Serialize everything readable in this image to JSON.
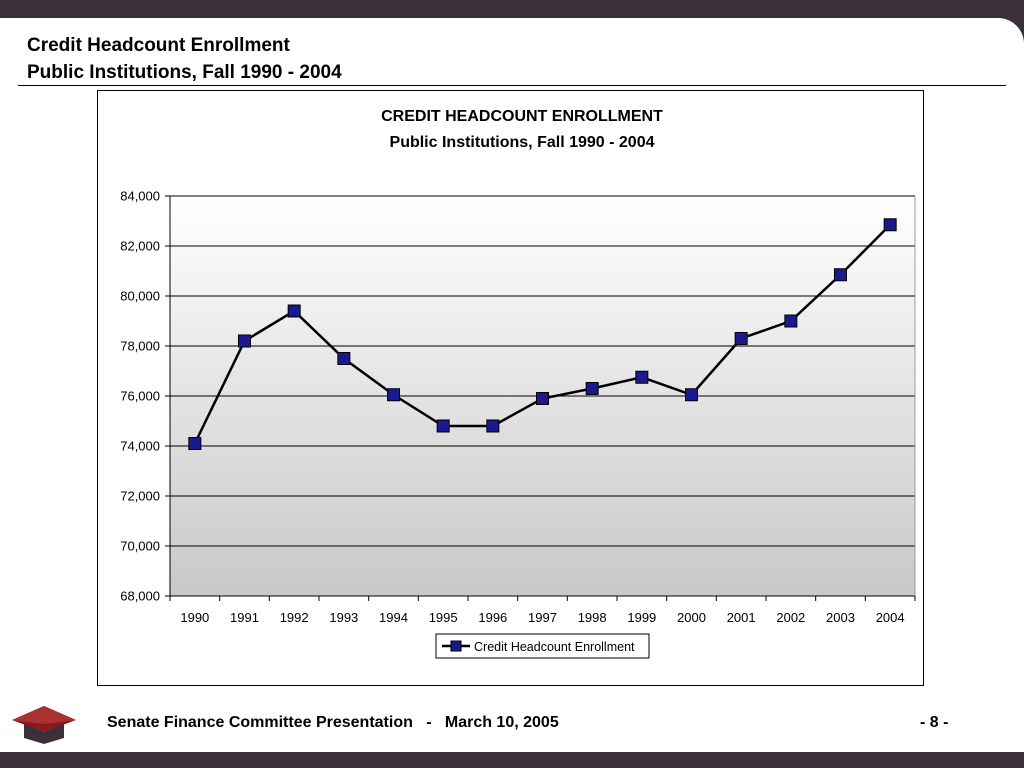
{
  "slide": {
    "title_line1": "Credit Headcount Enrollment",
    "title_line2": "Public Institutions, Fall 1990 - 2004",
    "footer": "Senate Finance Committee Presentation   -   March 10, 2005",
    "page_number": "- 8 -"
  },
  "colors": {
    "line": "#000000",
    "marker": "#1a1a8c",
    "plot_gradient_top": "#ffffff",
    "plot_gradient_bottom": "#c8c8c8",
    "frame_dark": "#3b2f3a",
    "logo_red": "#8b1a1a"
  },
  "icons": {
    "logo": "mortarboard-logo-icon"
  },
  "chart_data": {
    "type": "line",
    "title": "CREDIT HEADCOUNT ENROLLMENT",
    "subtitle": "Public Institutions, Fall 1990 - 2004",
    "xlabel": "",
    "ylabel": "",
    "categories": [
      "1990",
      "1991",
      "1992",
      "1993",
      "1994",
      "1995",
      "1996",
      "1997",
      "1998",
      "1999",
      "2000",
      "2001",
      "2002",
      "2003",
      "2004"
    ],
    "series": [
      {
        "name": "Credit Headcount Enrollment",
        "values": [
          74100,
          78200,
          79400,
          77500,
          76050,
          74800,
          74800,
          75900,
          76300,
          76750,
          76050,
          78300,
          79000,
          80850,
          82850
        ]
      }
    ],
    "ylim": [
      68000,
      84000
    ],
    "yticks": [
      68000,
      70000,
      72000,
      74000,
      76000,
      78000,
      80000,
      82000,
      84000
    ],
    "ytick_labels": [
      "68,000",
      "70,000",
      "72,000",
      "74,000",
      "76,000",
      "78,000",
      "80,000",
      "82,000",
      "84,000"
    ],
    "grid": true,
    "legend": "bottom-center",
    "marker": "square"
  }
}
